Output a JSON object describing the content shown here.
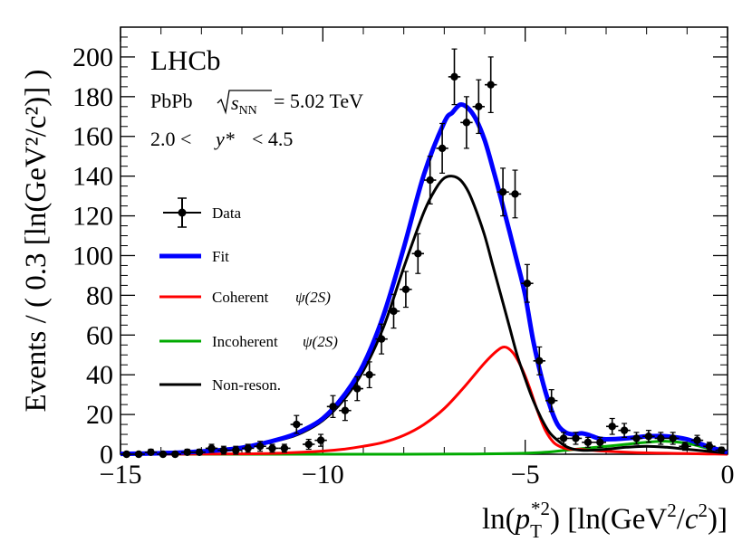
{
  "chart_data": {
    "type": "scatter",
    "experiment": "LHCb",
    "system_label": "PbPb",
    "energy_value": "= 5.02 TeV",
    "rapidity_low": "2.0 <",
    "rapidity_var": "y*",
    "rapidity_high": "< 4.5",
    "ylabel": "Events / ( 0.3 [ln(GeV²/c²)] )",
    "xlabel": "ln(p_T^{*2}) [ln(GeV²/c²)]",
    "xlim": [
      -15,
      0
    ],
    "ylim": [
      0,
      215
    ],
    "x_ticks": [
      -15,
      -10,
      -5,
      0
    ],
    "x_tick_labels": [
      "−15",
      "−10",
      "−5",
      "0"
    ],
    "y_ticks": [
      0,
      20,
      40,
      60,
      80,
      100,
      120,
      140,
      160,
      180,
      200
    ],
    "y_tick_labels": [
      "0",
      "20",
      "40",
      "60",
      "80",
      "100",
      "120",
      "140",
      "160",
      "180",
      "200"
    ],
    "legend": [
      {
        "label": "Data",
        "kind": "marker"
      },
      {
        "label": "Fit",
        "kind": "line"
      },
      {
        "label": "Coherent",
        "particle": "ψ(2S)",
        "kind": "line"
      },
      {
        "label": "Incoherent",
        "particle": "ψ(2S)",
        "kind": "line"
      },
      {
        "label": "Non-reson.",
        "kind": "line"
      }
    ],
    "data": {
      "x": [
        -14.85,
        -14.55,
        -14.25,
        -13.95,
        -13.65,
        -13.35,
        -13.05,
        -12.75,
        -12.45,
        -12.15,
        -11.85,
        -11.55,
        -11.25,
        -10.95,
        -10.65,
        -10.35,
        -10.05,
        -9.75,
        -9.45,
        -9.15,
        -8.85,
        -8.55,
        -8.25,
        -7.95,
        -7.65,
        -7.35,
        -7.05,
        -6.75,
        -6.45,
        -6.15,
        -5.85,
        -5.55,
        -5.25,
        -4.95,
        -4.65,
        -4.35,
        -4.05,
        -3.75,
        -3.45,
        -3.15,
        -2.85,
        -2.55,
        -2.25,
        -1.95,
        -1.65,
        -1.35,
        -1.05,
        -0.75,
        -0.45,
        -0.15
      ],
      "y": [
        0,
        0,
        1,
        0,
        0,
        1,
        1,
        3,
        2,
        2,
        3,
        4,
        3,
        3,
        15,
        5,
        7,
        24,
        22,
        33,
        40,
        58,
        72,
        83,
        101,
        138,
        154,
        190,
        167,
        175,
        186,
        132,
        131,
        86,
        47,
        27,
        8,
        8,
        6,
        6,
        14,
        12,
        8,
        9,
        8,
        8,
        4,
        7,
        4,
        2
      ],
      "yerr": [
        1,
        1,
        1.5,
        1,
        1,
        1.5,
        1.5,
        2,
        2,
        2,
        2,
        2.5,
        2,
        2,
        4.5,
        2.5,
        3,
        5.5,
        5,
        6,
        6.5,
        7.5,
        8.5,
        9,
        10,
        12,
        12.5,
        14,
        13,
        13.5,
        14,
        12,
        12,
        9.5,
        7,
        5.5,
        3,
        3,
        2.5,
        2.5,
        4,
        3.5,
        3,
        3,
        3,
        3,
        2,
        2.5,
        2,
        1.5
      ],
      "xerr": 0.15
    },
    "curves": [
      {
        "name": "Fit",
        "color": "#0000ff",
        "x": [
          -15,
          -14,
          -13,
          -12,
          -11,
          -10.5,
          -10,
          -9.5,
          -9,
          -8.5,
          -8,
          -7.5,
          -7,
          -6.8,
          -6.6,
          -6.4,
          -6.2,
          -6,
          -5.8,
          -5.5,
          -5.2,
          -5,
          -4.8,
          -4.6,
          -4.4,
          -4.2,
          -4,
          -3.8,
          -3.6,
          -3.4,
          -3.2,
          -3,
          -2.5,
          -2,
          -1.5,
          -1,
          -0.5,
          0
        ],
        "y": [
          0.2,
          0.5,
          1.4,
          3.3,
          8,
          12,
          18,
          29,
          45,
          70,
          104,
          141,
          167,
          172,
          176,
          174,
          168,
          158,
          144,
          121,
          97,
          80,
          57,
          39,
          25,
          15,
          11,
          10,
          10.5,
          9.5,
          8,
          7.5,
          8,
          9,
          9,
          7.5,
          4,
          1
        ]
      },
      {
        "name": "Coherent",
        "color": "#ff0000",
        "x": [
          -15,
          -12,
          -11,
          -10,
          -9.5,
          -9,
          -8.5,
          -8,
          -7.5,
          -7,
          -6.5,
          -6,
          -5.7,
          -5.5,
          -5.3,
          -5.1,
          -4.9,
          -4.7,
          -4.5,
          -4.3,
          -4.1,
          -3.9,
          -3.7,
          -3.5,
          -3,
          -2.5,
          -2,
          -1.5,
          -1,
          -0.5,
          0
        ],
        "y": [
          0,
          0.2,
          0.6,
          1.6,
          2.5,
          4,
          6,
          9.5,
          15,
          23,
          34,
          46,
          52,
          54,
          51,
          44,
          34,
          22,
          12,
          6,
          3.5,
          2.5,
          2.5,
          2.2,
          1.5,
          1,
          0.7,
          0.5,
          0.3,
          0.15,
          0
        ]
      },
      {
        "name": "Incoherent",
        "color": "#00aa00",
        "x": [
          -15,
          -8,
          -6,
          -5,
          -4.5,
          -4,
          -3.5,
          -3,
          -2.5,
          -2,
          -1.5,
          -1,
          -0.5,
          0
        ],
        "y": [
          0,
          0,
          0.2,
          0.5,
          1,
          2,
          3,
          4,
          5,
          6,
          6.5,
          5.5,
          3,
          0.8
        ]
      },
      {
        "name": "Non-reson.",
        "color": "#000000",
        "x": [
          -15,
          -14,
          -13,
          -12,
          -11,
          -10.5,
          -10,
          -9.5,
          -9,
          -8.5,
          -8,
          -7.5,
          -7.2,
          -7,
          -6.8,
          -6.6,
          -6.4,
          -6.2,
          -6,
          -5.8,
          -5.6,
          -5.4,
          -5.2,
          -5,
          -4.8,
          -4.6,
          -4.4,
          -4.2,
          -4,
          -3.8,
          -3.6,
          -3.4,
          -3,
          -2.5,
          -2,
          -1.5,
          -1,
          -0.5,
          0
        ],
        "y": [
          0.2,
          0.5,
          1.4,
          3.2,
          7.5,
          11,
          17,
          27,
          42,
          64,
          94,
          122,
          134,
          139,
          140,
          138,
          132,
          122,
          110,
          95,
          80,
          65,
          50,
          38,
          27,
          18,
          11,
          7,
          4,
          2.5,
          2,
          2,
          2.5,
          3.5,
          4,
          3.5,
          2.5,
          1.5,
          0.5
        ]
      }
    ]
  }
}
